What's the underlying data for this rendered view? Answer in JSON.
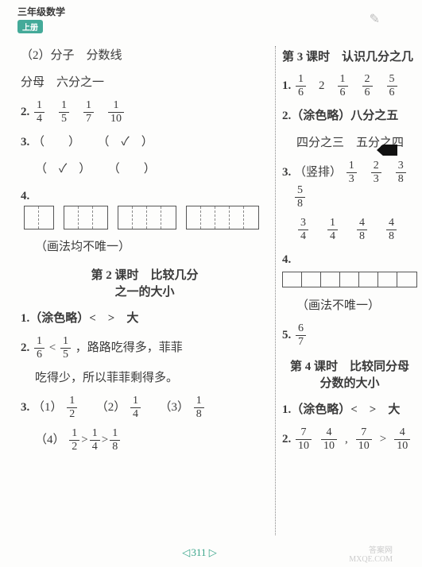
{
  "header": {
    "subject": "三年级数学",
    "vol": "上册",
    "scribble": "✎"
  },
  "left": {
    "q_sub2": "（2）分子　分数线",
    "q_sub2b": "分母　六分之一",
    "q2_num": "2.",
    "q2_fracs": [
      [
        "1",
        "4"
      ],
      [
        "1",
        "5"
      ],
      [
        "1",
        "7"
      ],
      [
        "1",
        "10"
      ]
    ],
    "q3_num": "3.",
    "q3_row1_a": "（　　）",
    "q3_row1_b": "（　✓　）",
    "q3_row2_a": "（　✓　）",
    "q3_row2_b": "（　　）",
    "q4_num": "4.",
    "q4_boxes": {
      "h": 28,
      "w": 18,
      "sets": [
        2,
        3,
        4,
        5
      ]
    },
    "q4_note": "（画法均不唯一）",
    "lesson2_a": "第 2 课时　比较几分",
    "lesson2_b": "之一的大小",
    "l2_q1": "1.（涂色略）<　>　大",
    "l2_q2_num": "2.",
    "l2_q2_f1": [
      "1",
      "6"
    ],
    "l2_q2_lt": "<",
    "l2_q2_f2": [
      "1",
      "5"
    ],
    "l2_q2_t1": "，路路吃得多，菲菲",
    "l2_q2_t2": "吃得少，所以菲菲剩得多。",
    "l2_q3_num": "3.",
    "l2_q3_p1": "（1）",
    "l2_q3_f1": [
      "1",
      "2"
    ],
    "l2_q3_p2": "（2）",
    "l2_q3_f2": [
      "1",
      "4"
    ],
    "l2_q3_p3": "（3）",
    "l2_q3_f3": [
      "1",
      "8"
    ],
    "l2_q3_p4": "（4）",
    "l2_q3_chain": [
      [
        "1",
        "2"
      ],
      ">",
      [
        "1",
        "4"
      ],
      ">",
      [
        "1",
        "8"
      ]
    ]
  },
  "right": {
    "lesson3": "第 3 课时　认识几分之几",
    "l3_q1_num": "1.",
    "l3_q1_line": [
      [
        "1",
        "6"
      ],
      "2",
      [
        "1",
        "6"
      ],
      [
        "2",
        "6"
      ],
      [
        "5",
        "6"
      ]
    ],
    "l3_q2": "2.（涂色略）八分之五",
    "l3_q2b": "四分之三　五分之四",
    "l3_q3_num": "3.",
    "l3_q3_lbl": "（竖排）",
    "l3_q3_row1": [
      [
        "1",
        "3"
      ],
      [
        "2",
        "3"
      ],
      [
        "3",
        "8"
      ],
      [
        "5",
        "8"
      ]
    ],
    "l3_q3_row2": [
      [
        "3",
        "4"
      ],
      [
        "1",
        "4"
      ],
      [
        "4",
        "8"
      ],
      [
        "4",
        "8"
      ]
    ],
    "l3_q4_num": "4.",
    "l3_q4_box": {
      "h": 18,
      "w": 24,
      "cells": 7
    },
    "l3_q4_note": "（画法不唯一）",
    "l3_q5_num": "5.",
    "l3_q5_f": [
      "6",
      "7"
    ],
    "lesson4_a": "第 4 课时　比较同分母",
    "lesson4_b": "分数的大小",
    "l4_q1": "1.（涂色略）<　>　大",
    "l4_q2_num": "2.",
    "l4_q2_chain": [
      [
        "7",
        "10"
      ],
      [
        "4",
        "10"
      ],
      ",",
      [
        "7",
        "10"
      ],
      ">",
      [
        "4",
        "10"
      ]
    ]
  },
  "pagefoot": {
    "l": "◁",
    "num": "311",
    "r": "▷"
  },
  "watermark": {
    "a": "答案网",
    "b": "MXQE.COM"
  }
}
